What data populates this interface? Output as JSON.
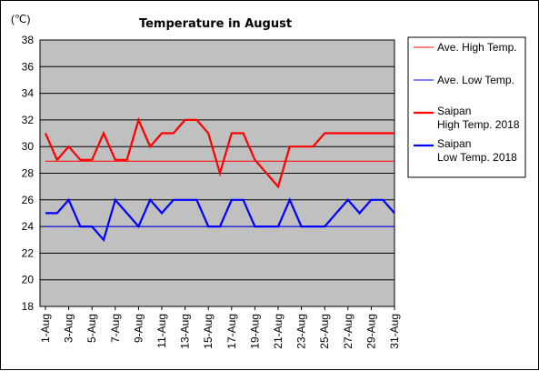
{
  "chart_data": {
    "type": "line",
    "title": "Temperature in August",
    "unit_label": "(℃)",
    "ylim": [
      18,
      38
    ],
    "yticks": [
      "38",
      "36",
      "34",
      "32",
      "30",
      "28",
      "26",
      "24",
      "22",
      "20",
      "18"
    ],
    "xticks": [
      "1-Aug",
      "3-Aug",
      "5-Aug",
      "7-Aug",
      "9-Aug",
      "11-Aug",
      "13-Aug",
      "15-Aug",
      "17-Aug",
      "19-Aug",
      "21-Aug",
      "23-Aug",
      "25-Aug",
      "27-Aug",
      "29-Aug",
      "31-Aug"
    ],
    "x": [
      "1-Aug",
      "2-Aug",
      "3-Aug",
      "4-Aug",
      "5-Aug",
      "6-Aug",
      "7-Aug",
      "8-Aug",
      "9-Aug",
      "10-Aug",
      "11-Aug",
      "12-Aug",
      "13-Aug",
      "14-Aug",
      "15-Aug",
      "16-Aug",
      "17-Aug",
      "18-Aug",
      "19-Aug",
      "20-Aug",
      "21-Aug",
      "22-Aug",
      "23-Aug",
      "24-Aug",
      "25-Aug",
      "26-Aug",
      "27-Aug",
      "28-Aug",
      "29-Aug",
      "30-Aug",
      "31-Aug"
    ],
    "grid": true,
    "plot_background": "#c0c0c0",
    "legend_placement": "right",
    "series": [
      {
        "legend": "Ave. High Temp.",
        "color": "#ff0000",
        "thick": false,
        "values": [
          28.9,
          28.9,
          28.9,
          28.9,
          28.9,
          28.9,
          28.9,
          28.9,
          28.9,
          28.9,
          28.9,
          28.9,
          28.9,
          28.9,
          28.9,
          28.9,
          28.9,
          28.9,
          28.9,
          28.9,
          28.9,
          28.9,
          28.9,
          28.9,
          28.9,
          28.9,
          28.9,
          28.9,
          28.9,
          28.9,
          28.9
        ]
      },
      {
        "legend": "Ave. Low Temp.",
        "color": "#0000ff",
        "thick": false,
        "values": [
          24,
          24,
          24,
          24,
          24,
          24,
          24,
          24,
          24,
          24,
          24,
          24,
          24,
          24,
          24,
          24,
          24,
          24,
          24,
          24,
          24,
          24,
          24,
          24,
          24,
          24,
          24,
          24,
          24,
          24,
          24
        ]
      },
      {
        "legend": "Saipan\nHigh Temp. 2018",
        "color": "#ff0000",
        "thick": true,
        "values": [
          31,
          29,
          30,
          29,
          29,
          31,
          29,
          29,
          32,
          30,
          31,
          31,
          32,
          32,
          31,
          28,
          31,
          31,
          29,
          28,
          27,
          30,
          30,
          30,
          31,
          31,
          31,
          31,
          31,
          31,
          31
        ]
      },
      {
        "legend": "Saipan\nLow Temp. 2018",
        "color": "#0000ff",
        "thick": true,
        "values": [
          25,
          25,
          26,
          24,
          24,
          23,
          26,
          25,
          24,
          26,
          25,
          26,
          26,
          26,
          24,
          24,
          26,
          26,
          24,
          24,
          24,
          26,
          24,
          24,
          24,
          25,
          26,
          25,
          26,
          26,
          25
        ]
      }
    ]
  }
}
